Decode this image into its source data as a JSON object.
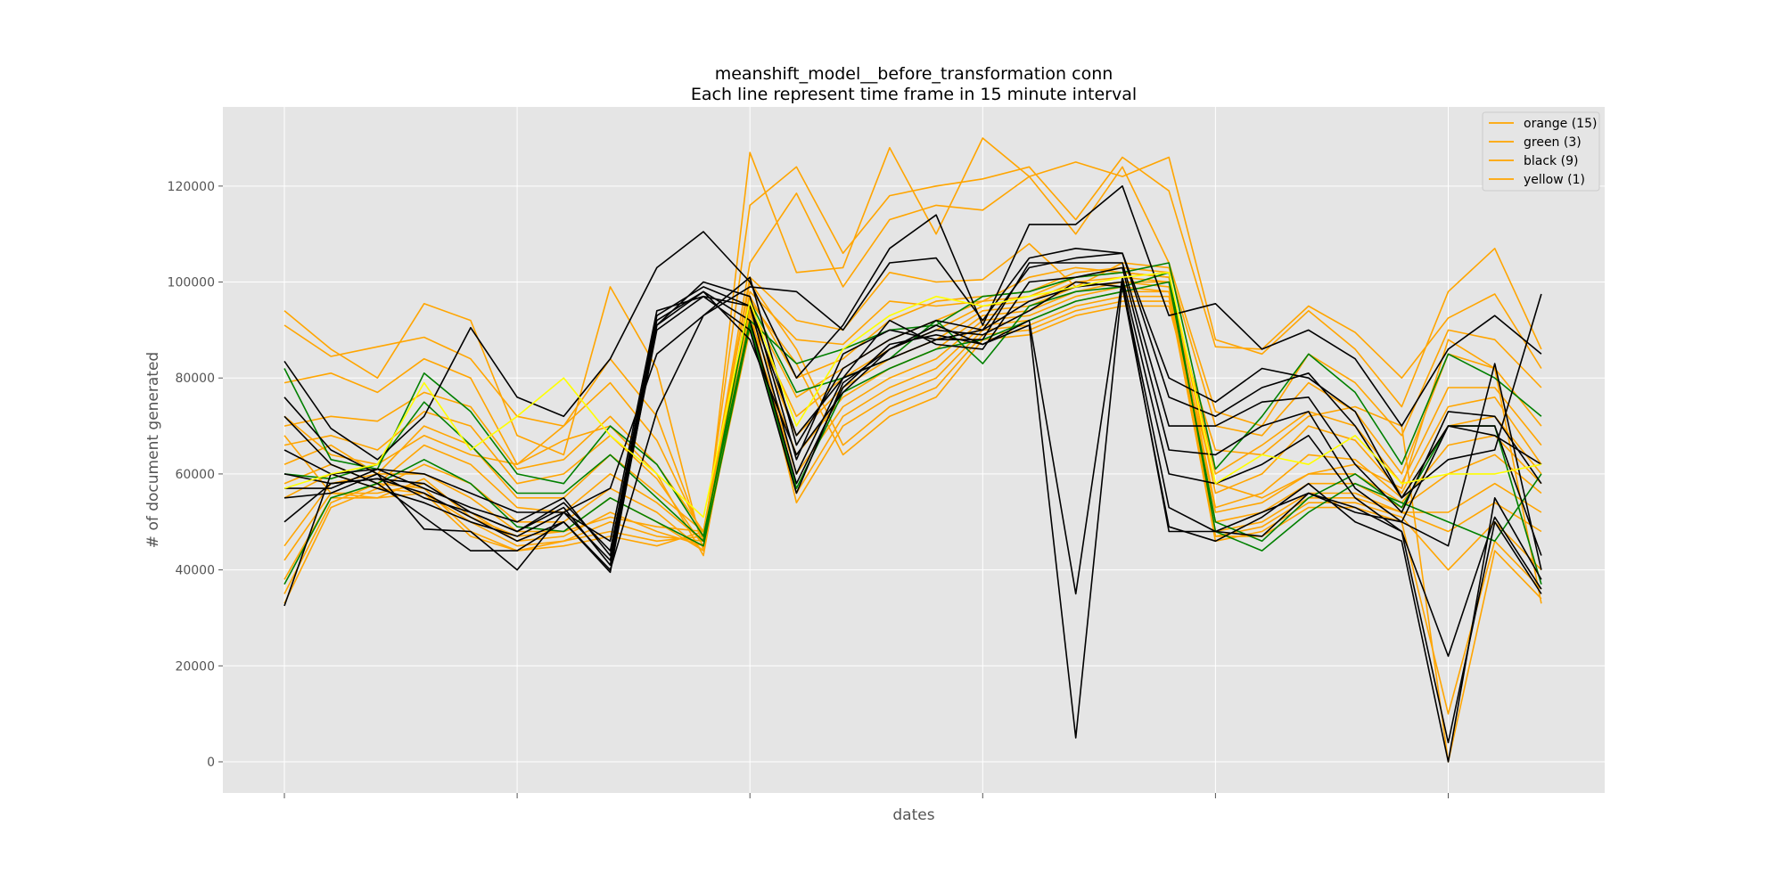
{
  "chart_data": {
    "type": "line",
    "title": "meanshift_model__before_transformation conn",
    "subtitle": "Each line represent time frame in 15 minute interval",
    "xlabel": "dates",
    "ylabel": "# of document generated",
    "x": [
      0,
      1,
      2,
      3,
      4,
      5,
      6,
      7,
      8,
      9,
      10,
      11,
      12,
      13,
      14,
      15,
      16,
      17,
      18,
      19,
      20,
      21,
      22,
      23,
      24,
      25,
      26,
      27
    ],
    "x_major_ticks": [
      0,
      5,
      10,
      15,
      20,
      25
    ],
    "ylim": [
      -6500,
      136500
    ],
    "yticks": [
      0,
      20000,
      40000,
      60000,
      80000,
      100000,
      120000
    ],
    "ytick_labels": [
      "0",
      "20000",
      "40000",
      "60000",
      "80000",
      "100000",
      "120000"
    ],
    "grid": true,
    "legend": {
      "placement": "top-right",
      "entries": [
        "orange (15)",
        "green (3)",
        "black (9)",
        "yellow (1)"
      ]
    },
    "colors": {
      "orange": "#ffa500",
      "green": "#008000",
      "black": "#000000",
      "yellow": "#ffff00",
      "background": "#e5e5e5",
      "grid": "#ffffff"
    },
    "series": [
      {
        "color": "orange",
        "values": [
          94000,
          86000,
          80000,
          95500,
          92000,
          68000,
          64000,
          99000,
          82000,
          44000,
          127000,
          102000,
          103000,
          128000,
          110000,
          130000,
          122000,
          125000,
          122000,
          126000,
          88000,
          85000,
          94000,
          86000,
          74000,
          98000,
          107000,
          86000
        ]
      },
      {
        "color": "orange",
        "values": [
          91000,
          84500,
          86500,
          88500,
          84000,
          72000,
          70000,
          84000,
          72000,
          46000,
          116000,
          124000,
          106000,
          118000,
          120000,
          121500,
          124000,
          113000,
          126000,
          119000,
          86500,
          86000,
          95000,
          89500,
          80000,
          92500,
          97500,
          82000
        ]
      },
      {
        "color": "orange",
        "values": [
          79000,
          81000,
          77000,
          84000,
          80000,
          62000,
          70000,
          79000,
          67000,
          47000,
          104000,
          118500,
          99000,
          113000,
          116000,
          115000,
          122000,
          110000,
          124000,
          104000,
          73000,
          70000,
          85000,
          79000,
          68000,
          90000,
          88000,
          78000
        ]
      },
      {
        "color": "orange",
        "values": [
          70000,
          72000,
          71000,
          77000,
          74000,
          61000,
          63000,
          72000,
          62000,
          48000,
          101000,
          92000,
          90000,
          102000,
          100000,
          100500,
          108000,
          99000,
          104000,
          103000,
          70000,
          68000,
          79000,
          73000,
          60000,
          85000,
          82000,
          70000
        ]
      },
      {
        "color": "orange",
        "values": [
          66000,
          68000,
          65000,
          73000,
          70000,
          58000,
          60000,
          68000,
          59000,
          45000,
          98000,
          88000,
          87000,
          96000,
          95000,
          96000,
          101000,
          103000,
          102000,
          101000,
          60000,
          66000,
          73000,
          70000,
          58000,
          78000,
          78000,
          66000
        ]
      },
      {
        "color": "orange",
        "values": [
          62000,
          66000,
          60000,
          70000,
          66000,
          55000,
          55000,
          64000,
          56000,
          48000,
          97000,
          80000,
          84000,
          92000,
          96000,
          97000,
          98000,
          102000,
          103000,
          102000,
          56000,
          60000,
          70000,
          67000,
          56000,
          74000,
          76000,
          62000
        ]
      },
      {
        "color": "orange",
        "values": [
          58000,
          62000,
          58000,
          66000,
          62000,
          53000,
          52000,
          60000,
          54000,
          46000,
          95000,
          76000,
          82000,
          88000,
          92000,
          96000,
          97000,
          101000,
          102000,
          101000,
          53000,
          56000,
          64000,
          63000,
          55000,
          70000,
          72000,
          60000
        ]
      },
      {
        "color": "orange",
        "values": [
          55000,
          60000,
          57000,
          62000,
          58000,
          50000,
          50000,
          57000,
          52000,
          44000,
          93000,
          72000,
          80000,
          86000,
          90000,
          95000,
          96000,
          100000,
          101000,
          100000,
          52000,
          54000,
          60000,
          60000,
          54000,
          66000,
          68000,
          58000
        ]
      },
      {
        "color": "orange",
        "values": [
          45000,
          58000,
          60000,
          60000,
          55000,
          48000,
          48000,
          55000,
          50000,
          44000,
          92000,
          68000,
          78000,
          84000,
          88000,
          94000,
          95000,
          99000,
          100000,
          100000,
          50000,
          52000,
          58000,
          58000,
          53000,
          60000,
          64000,
          56000
        ]
      },
      {
        "color": "orange",
        "values": [
          42000,
          56000,
          56000,
          58000,
          52000,
          46000,
          47000,
          52000,
          48000,
          45000,
          90000,
          64000,
          76000,
          82000,
          86000,
          93000,
          94000,
          98000,
          100000,
          99000,
          48000,
          50000,
          56000,
          56000,
          52000,
          52000,
          58000,
          52000
        ]
      },
      {
        "color": "orange",
        "values": [
          38000,
          55000,
          55000,
          56000,
          50000,
          45000,
          46000,
          50000,
          47000,
          46000,
          91000,
          60000,
          74000,
          80000,
          84000,
          92000,
          93000,
          97000,
          99000,
          98000,
          47000,
          49000,
          55000,
          55000,
          52000,
          48000,
          54000,
          48000
        ]
      },
      {
        "color": "orange",
        "values": [
          35000,
          54000,
          58000,
          57000,
          48000,
          44000,
          46000,
          48000,
          46000,
          47000,
          92000,
          56000,
          72000,
          78000,
          82000,
          91000,
          92000,
          96000,
          98000,
          98000,
          46000,
          48000,
          54000,
          54000,
          51000,
          40000,
          50000,
          40000
        ]
      },
      {
        "color": "orange",
        "values": [
          33000,
          53000,
          57000,
          56000,
          47000,
          44000,
          45000,
          47000,
          45000,
          48000,
          94000,
          54000,
          70000,
          76000,
          80000,
          90000,
          91000,
          95000,
          97000,
          97000,
          47000,
          47000,
          53000,
          53000,
          50000,
          10000,
          46000,
          36000
        ]
      },
      {
        "color": "orange",
        "values": [
          68000,
          56000,
          55000,
          59000,
          51000,
          47000,
          48000,
          51000,
          49000,
          48000,
          100000,
          86000,
          66000,
          74000,
          78000,
          89000,
          90000,
          94000,
          96000,
          96000,
          65000,
          64000,
          72000,
          74000,
          70000,
          0,
          44000,
          34000
        ]
      },
      {
        "color": "orange",
        "values": [
          72000,
          64000,
          62000,
          68000,
          64000,
          62000,
          67000,
          70000,
          60000,
          43000,
          96000,
          83000,
          64000,
          72000,
          76000,
          88000,
          89000,
          93000,
          95000,
          95000,
          58000,
          55000,
          60000,
          62000,
          57000,
          88000,
          82000,
          33000
        ]
      },
      {
        "color": "green",
        "values": [
          82000,
          63000,
          61000,
          81000,
          73000,
          60000,
          58000,
          70000,
          62000,
          47000,
          92000,
          83000,
          86000,
          90000,
          91000,
          97000,
          98000,
          101000,
          102000,
          104000,
          61000,
          72000,
          85000,
          77000,
          62000,
          85000,
          80000,
          72000
        ]
      },
      {
        "color": "green",
        "values": [
          60000,
          59000,
          62000,
          75000,
          66000,
          56000,
          56000,
          64000,
          55000,
          46000,
          96000,
          77000,
          80000,
          84000,
          92000,
          83000,
          95000,
          98000,
          99000,
          102000,
          48000,
          44000,
          52000,
          58000,
          54000,
          50000,
          46000,
          60000
        ]
      },
      {
        "color": "green",
        "values": [
          37000,
          55000,
          58000,
          63000,
          58000,
          49000,
          48000,
          55000,
          50000,
          45000,
          91000,
          57000,
          77000,
          82000,
          86000,
          88000,
          92000,
          96000,
          98000,
          100000,
          50000,
          46000,
          55000,
          60000,
          53000,
          70000,
          70000,
          37000
        ]
      },
      {
        "color": "black",
        "values": [
          83500,
          69500,
          63000,
          72000,
          90500,
          76000,
          72000,
          84000,
          103000,
          110500,
          100000,
          80000,
          91000,
          107000,
          114000,
          91000,
          112000,
          112000,
          120000,
          93000,
          95500,
          86000,
          90000,
          84000,
          70000,
          86000,
          93000,
          85000
        ]
      },
      {
        "color": "black",
        "values": [
          76000,
          65000,
          60000,
          48500,
          48000,
          40000,
          52000,
          57000,
          85000,
          93000,
          99000,
          98000,
          90000,
          104000,
          105000,
          92000,
          105000,
          107000,
          106000,
          80000,
          75000,
          82000,
          80000,
          73000,
          55000,
          63000,
          65000,
          97500
        ]
      },
      {
        "color": "black",
        "values": [
          72000,
          62000,
          58000,
          51000,
          44000,
          44000,
          50000,
          40000,
          73000,
          93000,
          101000,
          66000,
          82000,
          88000,
          92000,
          90000,
          103000,
          105000,
          106000,
          76000,
          72000,
          78000,
          81000,
          70000,
          55000,
          70000,
          68000,
          62000
        ]
      },
      {
        "color": "black",
        "values": [
          65000,
          60000,
          57000,
          54000,
          50000,
          47000,
          52000,
          42000,
          91000,
          100000,
          97000,
          63000,
          85000,
          90000,
          88000,
          88000,
          104000,
          104000,
          104000,
          70000,
          70000,
          75000,
          76000,
          62000,
          52000,
          73000,
          72000,
          58000
        ]
      },
      {
        "color": "black",
        "values": [
          60000,
          58000,
          59000,
          58000,
          52000,
          48000,
          54000,
          44000,
          93000,
          99000,
          95000,
          60000,
          80000,
          92000,
          87000,
          86000,
          100000,
          101000,
          103000,
          65000,
          64000,
          70000,
          73000,
          57000,
          50000,
          70000,
          70000,
          43000
        ]
      },
      {
        "color": "black",
        "values": [
          57000,
          57000,
          61000,
          57000,
          53000,
          50000,
          55000,
          43000,
          92000,
          98000,
          92000,
          58000,
          78000,
          87000,
          89000,
          87000,
          92000,
          35000,
          101000,
          60000,
          58000,
          62000,
          68000,
          55000,
          48000,
          22000,
          51000,
          36000
        ]
      },
      {
        "color": "black",
        "values": [
          55000,
          56000,
          60000,
          55000,
          52000,
          48000,
          53000,
          41000,
          90000,
          97000,
          90000,
          56000,
          79000,
          86000,
          91000,
          87000,
          91000,
          5000,
          100000,
          53000,
          48000,
          47000,
          56000,
          52000,
          50000,
          45000,
          83000,
          40000
        ]
      },
      {
        "color": "black",
        "values": [
          50000,
          58000,
          59000,
          56000,
          51000,
          46000,
          50000,
          39500,
          91000,
          98000,
          88000,
          64000,
          77000,
          86000,
          90000,
          89000,
          94000,
          100000,
          99000,
          49000,
          46000,
          51000,
          58000,
          50000,
          46000,
          0,
          55000,
          38000
        ]
      },
      {
        "color": "black",
        "values": [
          32500,
          60000,
          61000,
          60000,
          56000,
          52000,
          52000,
          46000,
          94000,
          97000,
          95000,
          68000,
          80000,
          84000,
          88000,
          90000,
          96000,
          99000,
          100000,
          48000,
          48000,
          52000,
          56000,
          53000,
          48000,
          4000,
          50000,
          35000
        ]
      },
      {
        "color": "yellow",
        "values": [
          57000,
          60000,
          62000,
          79000,
          65000,
          72000,
          80000,
          68000,
          60000,
          51000,
          96000,
          70000,
          86000,
          93000,
          97000,
          95000,
          97000,
          99000,
          101000,
          102000,
          58000,
          64000,
          62000,
          68000,
          58000,
          60000,
          60000,
          62000
        ]
      }
    ]
  }
}
